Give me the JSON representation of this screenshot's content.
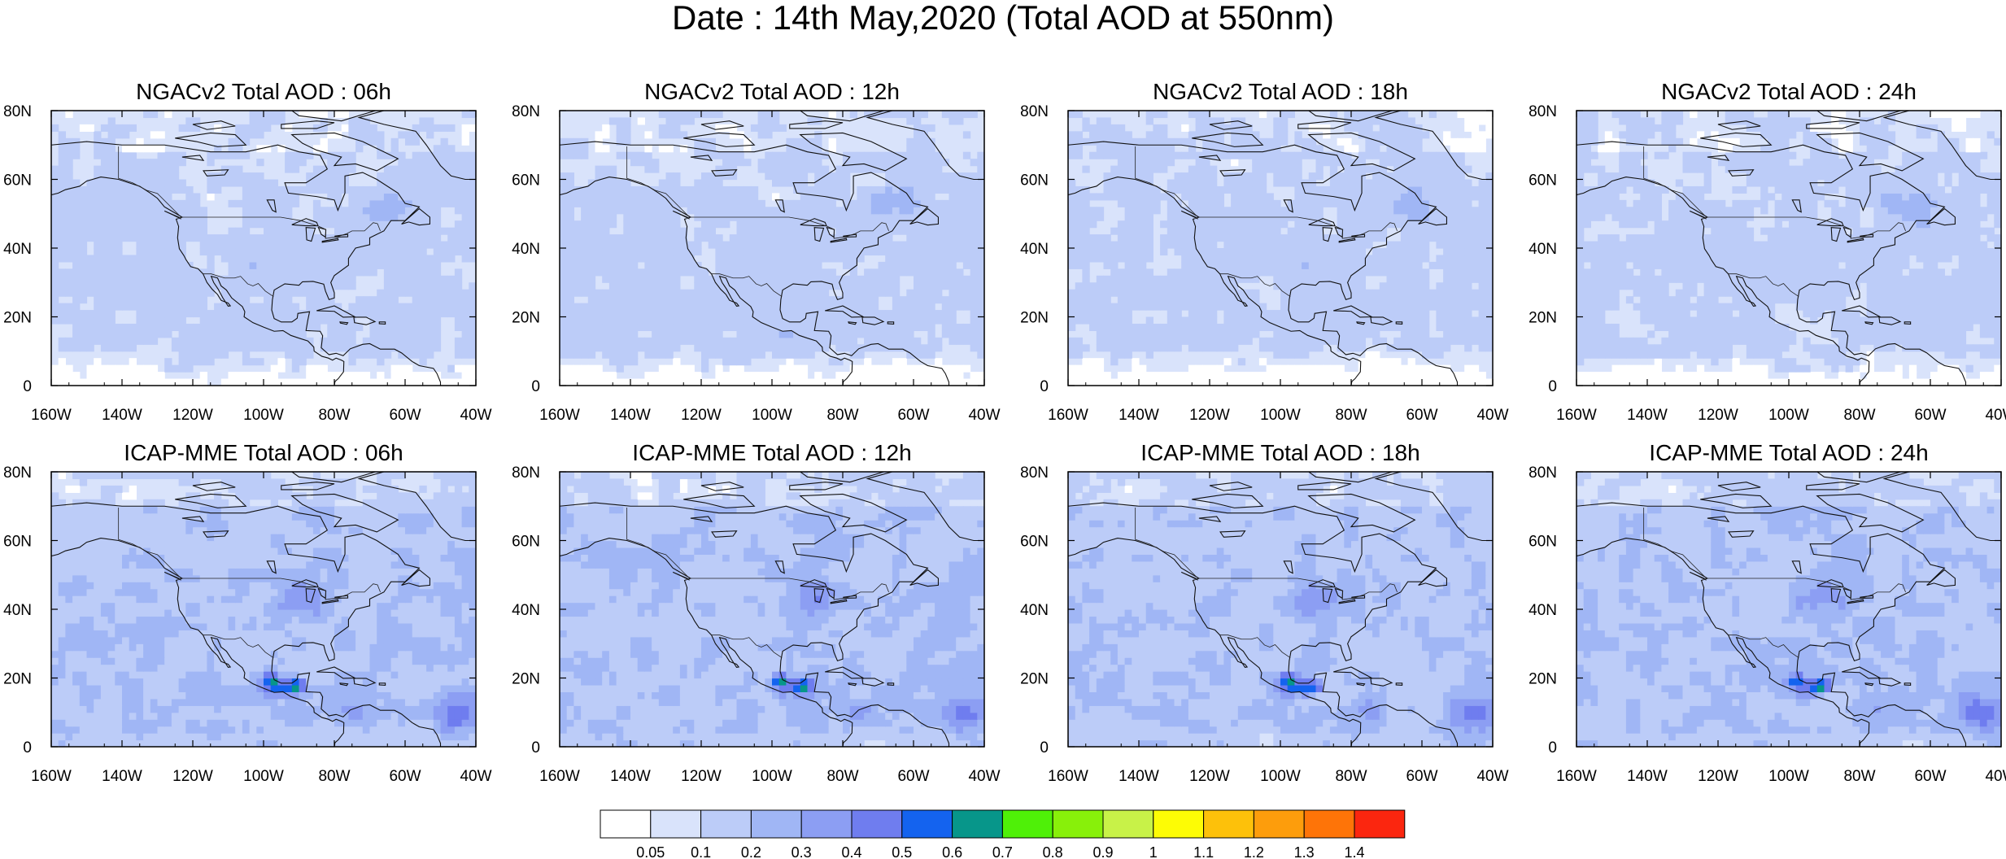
{
  "title": "Date : 14th May,2020 (Total AOD at 550nm)",
  "panels": [
    {
      "title": "NGACv2 Total AOD : 06h",
      "model": "NGACv2",
      "hour": 6
    },
    {
      "title": "NGACv2 Total AOD : 12h",
      "model": "NGACv2",
      "hour": 12
    },
    {
      "title": "NGACv2 Total AOD : 18h",
      "model": "NGACv2",
      "hour": 18
    },
    {
      "title": "NGACv2 Total AOD : 24h",
      "model": "NGACv2",
      "hour": 24
    },
    {
      "title": "ICAP-MME Total AOD : 06h",
      "model": "ICAP-MME",
      "hour": 6
    },
    {
      "title": "ICAP-MME Total AOD : 12h",
      "model": "ICAP-MME",
      "hour": 12
    },
    {
      "title": "ICAP-MME Total AOD : 18h",
      "model": "ICAP-MME",
      "hour": 18
    },
    {
      "title": "ICAP-MME Total AOD : 24h",
      "model": "ICAP-MME",
      "hour": 24
    }
  ],
  "axes": {
    "lon_range": [
      -160,
      -40
    ],
    "lat_range": [
      0,
      80
    ],
    "lon_ticks": [
      "160W",
      "140W",
      "120W",
      "100W",
      "80W",
      "60W",
      "40W"
    ],
    "lat_ticks": [
      "0",
      "20N",
      "40N",
      "60N",
      "80N"
    ]
  },
  "colorbar": {
    "labels": [
      "0.05",
      "0.1",
      "0.2",
      "0.3",
      "0.4",
      "0.5",
      "0.6",
      "0.7",
      "0.8",
      "0.9",
      "1",
      "1.1",
      "1.2",
      "1.3",
      "1.4"
    ],
    "colors": [
      "#ffffff",
      "#d9e3fb",
      "#bcccf8",
      "#a0b6f5",
      "#8c9ef3",
      "#6f7def",
      "#1463ef",
      "#07968a",
      "#4ff008",
      "#88f00a",
      "#c8f248",
      "#fdfc05",
      "#fdc10a",
      "#fd9d0c",
      "#fe7408",
      "#fb260f"
    ]
  }
}
